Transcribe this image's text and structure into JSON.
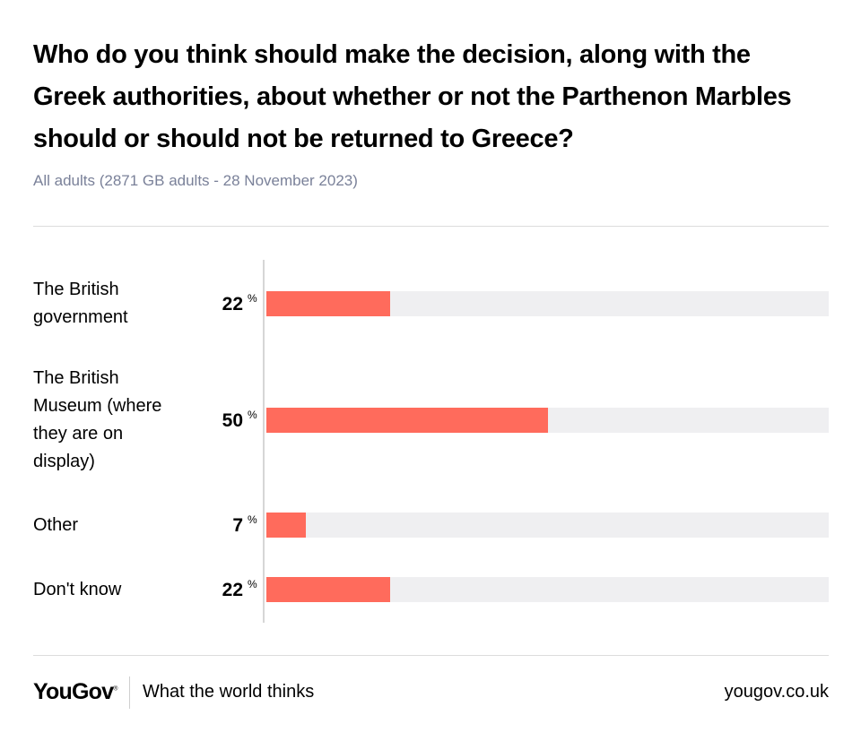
{
  "title": "Who do you think should make the decision, along with the Greek authorities, about whether or not the Parthenon Marbles should or should not be returned to Greece?",
  "subtitle": "All adults (2871 GB adults - 28 November 2023)",
  "chart_data": {
    "type": "bar",
    "orientation": "horizontal",
    "title": "Who do you think should make the decision, along with the Greek authorities, about whether or not the Parthenon Marbles should or should not be returned to Greece?",
    "categories": [
      "The British government",
      "The British Museum (where they are on display)",
      "Other",
      "Don't know"
    ],
    "category_lines": [
      [
        "The British",
        "government"
      ],
      [
        "The British",
        "Museum (where",
        "they are on",
        "display)"
      ],
      [
        "Other"
      ],
      [
        "Don't know"
      ]
    ],
    "values": [
      22,
      50,
      7,
      22
    ],
    "value_labels": [
      "22",
      "50",
      "7",
      "22"
    ],
    "unit": "%",
    "xlim": [
      0,
      100
    ],
    "colors": {
      "bar": "#ff6b5c",
      "track": "#efeff1"
    }
  },
  "footer": {
    "brand": "YouGov",
    "brand_mark": "®",
    "tagline": "What the world thinks",
    "url": "yougov.co.uk"
  }
}
